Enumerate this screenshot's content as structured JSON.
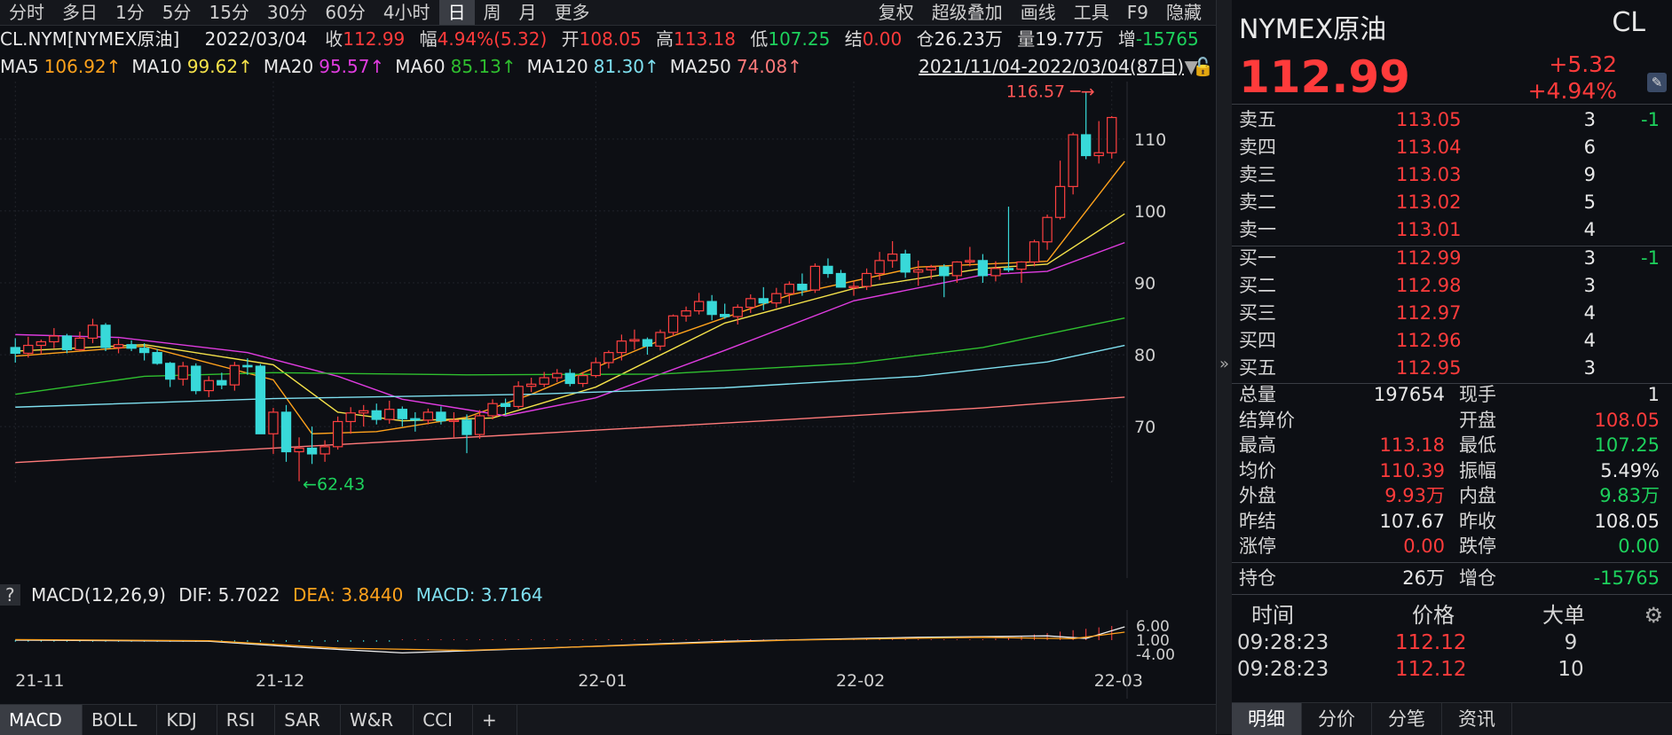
{
  "toolbar": {
    "periods": [
      "分时",
      "多日",
      "1分",
      "5分",
      "15分",
      "30分",
      "60分",
      "4小时",
      "日",
      "周",
      "月",
      "更多"
    ],
    "active_index": 8,
    "right_items": [
      "复权",
      "超级叠加",
      "画线",
      "工具",
      "F9",
      "隐藏"
    ]
  },
  "info": {
    "symbol": "CL.NYM[NYMEX原油]",
    "date": "2022/03/04",
    "close_label": "收",
    "close": "112.99",
    "amp_label": "幅",
    "amp": "4.94%(5.32)",
    "open_label": "开",
    "open": "108.05",
    "high_label": "高",
    "high": "113.18",
    "low_label": "低",
    "low": "107.25",
    "settle_label": "结",
    "settle": "0.00",
    "oi_label": "仓",
    "oi": "26.23万",
    "vol_label": "量",
    "vol": "19.77万",
    "inc_label": "增",
    "inc": "-15765"
  },
  "ma_line": {
    "items": [
      {
        "label": "MA5",
        "value": "106.92↑",
        "color": "#ffa21c"
      },
      {
        "label": "MA10",
        "value": "99.62↑",
        "color": "#f5e24a"
      },
      {
        "label": "MA20",
        "value": "95.57↑",
        "color": "#e03ce0"
      },
      {
        "label": "MA60",
        "value": "85.13↑",
        "color": "#2fbf2f"
      },
      {
        "label": "MA120",
        "value": "81.30↑",
        "color": "#7fe0f0"
      },
      {
        "label": "MA250",
        "value": "74.08↑",
        "color": "#ff7a7a"
      }
    ],
    "range": "2021/11/04-2022/03/04(87日)"
  },
  "chart_data": {
    "type": "candlestick",
    "y_ticks": [
      70,
      80,
      90,
      100,
      110
    ],
    "ylim": [
      62,
      118
    ],
    "x_ticks": [
      "21-11",
      "21-12",
      "22-01",
      "22-02",
      "22-03"
    ],
    "annotations": [
      {
        "text": "116.57",
        "type": "high"
      },
      {
        "text": "62.43",
        "type": "low"
      }
    ],
    "candles": [
      [
        81.0,
        82.3,
        78.9,
        80.2
      ],
      [
        80.2,
        82.5,
        79.6,
        81.3
      ],
      [
        81.3,
        82.1,
        80.1,
        81.8
      ],
      [
        81.8,
        83.7,
        80.9,
        82.6
      ],
      [
        82.6,
        82.9,
        80.2,
        80.7
      ],
      [
        80.7,
        83.2,
        80.5,
        82.3
      ],
      [
        82.3,
        85.0,
        81.6,
        84.1
      ],
      [
        84.1,
        84.4,
        80.5,
        81.0
      ],
      [
        81.0,
        82.2,
        80.2,
        81.4
      ],
      [
        81.4,
        82.0,
        80.5,
        80.9
      ],
      [
        80.9,
        81.6,
        79.2,
        80.3
      ],
      [
        80.3,
        80.8,
        78.6,
        78.8
      ],
      [
        78.8,
        79.0,
        75.5,
        76.6
      ],
      [
        76.6,
        79.0,
        75.7,
        78.4
      ],
      [
        78.4,
        78.8,
        74.5,
        75.0
      ],
      [
        75.0,
        77.0,
        74.1,
        76.4
      ],
      [
        76.4,
        77.5,
        75.2,
        75.8
      ],
      [
        75.8,
        79.0,
        75.0,
        78.5
      ],
      [
        78.5,
        79.5,
        77.2,
        78.4
      ],
      [
        78.4,
        78.7,
        69.2,
        69.0
      ],
      [
        69.0,
        72.6,
        66.2,
        72.0
      ],
      [
        72.0,
        73.0,
        65.1,
        66.5
      ],
      [
        66.5,
        68.5,
        62.4,
        67.0
      ],
      [
        67.0,
        70.0,
        64.8,
        66.2
      ],
      [
        66.2,
        68.1,
        65.1,
        67.2
      ],
      [
        67.2,
        71.4,
        66.8,
        70.7
      ],
      [
        70.7,
        72.7,
        69.0,
        71.9
      ],
      [
        71.9,
        73.0,
        70.0,
        72.2
      ],
      [
        72.2,
        73.2,
        70.3,
        71.0
      ],
      [
        71.0,
        73.6,
        70.4,
        72.4
      ],
      [
        72.4,
        72.8,
        70.0,
        71.1
      ],
      [
        71.1,
        72.0,
        69.3,
        70.9
      ],
      [
        70.9,
        72.5,
        70.3,
        72.0
      ],
      [
        72.0,
        72.8,
        70.3,
        70.8
      ],
      [
        70.8,
        72.0,
        68.5,
        70.9
      ],
      [
        70.9,
        71.7,
        66.3,
        68.9
      ],
      [
        68.9,
        72.3,
        68.3,
        71.5
      ],
      [
        71.5,
        73.8,
        71.0,
        73.2
      ],
      [
        73.2,
        73.9,
        71.6,
        72.8
      ],
      [
        72.8,
        76.3,
        72.5,
        75.6
      ],
      [
        75.6,
        76.8,
        74.8,
        75.9
      ],
      [
        75.9,
        77.6,
        75.5,
        76.8
      ],
      [
        76.8,
        78.0,
        76.2,
        77.4
      ],
      [
        77.4,
        78.0,
        75.6,
        76.0
      ],
      [
        76.0,
        77.6,
        75.5,
        77.1
      ],
      [
        77.1,
        79.6,
        76.8,
        78.9
      ],
      [
        78.9,
        80.6,
        78.1,
        80.3
      ],
      [
        80.3,
        82.8,
        79.2,
        81.9
      ],
      [
        81.9,
        83.5,
        80.7,
        82.1
      ],
      [
        82.1,
        82.4,
        80.0,
        81.2
      ],
      [
        81.2,
        83.5,
        80.6,
        83.1
      ],
      [
        83.1,
        85.6,
        82.6,
        85.4
      ],
      [
        85.4,
        86.7,
        84.6,
        86.1
      ],
      [
        86.1,
        88.6,
        85.6,
        87.4
      ],
      [
        87.4,
        88.3,
        84.8,
        85.6
      ],
      [
        85.6,
        87.1,
        85.0,
        85.3
      ],
      [
        85.3,
        87.0,
        84.2,
        86.6
      ],
      [
        86.6,
        88.4,
        85.8,
        87.8
      ],
      [
        87.8,
        89.4,
        86.2,
        87.2
      ],
      [
        87.2,
        89.3,
        86.5,
        88.5
      ],
      [
        88.5,
        90.2,
        87.1,
        89.8
      ],
      [
        89.8,
        91.3,
        88.2,
        89.0
      ],
      [
        89.0,
        92.7,
        88.6,
        92.3
      ],
      [
        92.3,
        93.4,
        90.7,
        91.3
      ],
      [
        91.3,
        91.8,
        89.4,
        89.4
      ],
      [
        89.4,
        90.2,
        88.2,
        89.5
      ],
      [
        89.5,
        92.0,
        89.0,
        91.3
      ],
      [
        91.3,
        94.3,
        90.4,
        93.1
      ],
      [
        93.1,
        95.8,
        92.1,
        94.0
      ],
      [
        94.0,
        94.6,
        90.7,
        91.5
      ],
      [
        91.5,
        93.1,
        89.6,
        91.8
      ],
      [
        91.8,
        92.5,
        90.5,
        92.2
      ],
      [
        92.2,
        92.6,
        88.0,
        91.0
      ],
      [
        91.0,
        93.0,
        90.0,
        92.9
      ],
      [
        92.9,
        95.0,
        92.3,
        93.1
      ],
      [
        93.1,
        94.0,
        90.0,
        91.0
      ],
      [
        91.0,
        93.0,
        90.2,
        92.0
      ],
      [
        92.0,
        100.6,
        91.5,
        91.9
      ],
      [
        91.9,
        93.0,
        90.0,
        92.9
      ],
      [
        92.9,
        96.0,
        92.3,
        95.7
      ],
      [
        95.7,
        99.5,
        94.6,
        99.1
      ],
      [
        99.1,
        107.0,
        98.8,
        103.4
      ],
      [
        103.4,
        110.9,
        102.3,
        110.6
      ],
      [
        110.6,
        116.6,
        107.2,
        107.7
      ],
      [
        107.7,
        112.5,
        106.6,
        108.1
      ],
      [
        108.1,
        113.2,
        107.3,
        113.0
      ]
    ],
    "ma": {
      "MA5": [
        [
          0,
          79.8
        ],
        [
          10,
          81.2
        ],
        [
          20,
          76.5
        ],
        [
          23,
          69.0
        ],
        [
          28,
          69.3
        ],
        [
          35,
          71.3
        ],
        [
          40,
          74.5
        ],
        [
          50,
          82.0
        ],
        [
          60,
          88.3
        ],
        [
          70,
          92.2
        ],
        [
          80,
          93.0
        ],
        [
          86,
          106.9
        ]
      ],
      "MA10": [
        [
          0,
          80.5
        ],
        [
          10,
          81.4
        ],
        [
          20,
          78.6
        ],
        [
          25,
          72.0
        ],
        [
          30,
          70.8
        ],
        [
          37,
          71.2
        ],
        [
          45,
          75.5
        ],
        [
          55,
          84.4
        ],
        [
          65,
          89.2
        ],
        [
          75,
          92.0
        ],
        [
          80,
          92.6
        ],
        [
          86,
          99.6
        ]
      ],
      "MA20": [
        [
          0,
          82.8
        ],
        [
          8,
          82.4
        ],
        [
          18,
          80.3
        ],
        [
          25,
          77.0
        ],
        [
          30,
          73.8
        ],
        [
          38,
          71.5
        ],
        [
          45,
          74.0
        ],
        [
          55,
          80.6
        ],
        [
          65,
          87.5
        ],
        [
          75,
          91.1
        ],
        [
          80,
          91.6
        ],
        [
          86,
          95.6
        ]
      ],
      "MA60": [
        [
          0,
          74.5
        ],
        [
          10,
          77.0
        ],
        [
          20,
          77.5
        ],
        [
          35,
          77.2
        ],
        [
          50,
          77.3
        ],
        [
          65,
          78.8
        ],
        [
          75,
          81.0
        ],
        [
          86,
          85.1
        ]
      ],
      "MA120": [
        [
          0,
          72.7
        ],
        [
          20,
          73.9
        ],
        [
          40,
          74.5
        ],
        [
          55,
          75.4
        ],
        [
          70,
          77.0
        ],
        [
          80,
          79.0
        ],
        [
          86,
          81.3
        ]
      ],
      "MA250": [
        [
          0,
          65.0
        ],
        [
          20,
          67.0
        ],
        [
          40,
          69.0
        ],
        [
          60,
          71.0
        ],
        [
          75,
          72.6
        ],
        [
          86,
          74.1
        ]
      ]
    },
    "macd": {
      "ticks": [
        "6.00",
        "1.00",
        "-4.00"
      ],
      "dif": [
        [
          0,
          1.0
        ],
        [
          15,
          0.6
        ],
        [
          22,
          -1.5
        ],
        [
          30,
          -3.5
        ],
        [
          40,
          -2.0
        ],
        [
          55,
          0.6
        ],
        [
          70,
          2.0
        ],
        [
          80,
          2.5
        ],
        [
          83,
          1.6
        ],
        [
          86,
          5.7
        ]
      ],
      "dea": [
        [
          0,
          1.2
        ],
        [
          15,
          0.8
        ],
        [
          25,
          -1.8
        ],
        [
          35,
          -2.6
        ],
        [
          45,
          -1.2
        ],
        [
          60,
          1.0
        ],
        [
          75,
          2.0
        ],
        [
          82,
          1.5
        ],
        [
          86,
          3.8
        ]
      ]
    }
  },
  "macd_header": {
    "q": "?",
    "name": "MACD(12,26,9)",
    "dif_label": "DIF: 5.7022",
    "dea_label": "DEA: 3.8440",
    "macd_label": "MACD: 3.7164"
  },
  "bottom_tabs": [
    "MACD",
    "BOLL",
    "KDJ",
    "RSI",
    "SAR",
    "W&R",
    "CCI",
    "+"
  ],
  "quote": {
    "name": "NYMEX原油",
    "code": "CL",
    "price": "112.99",
    "change": "+5.32",
    "pct": "+4.94%",
    "asks": [
      {
        "label": "卖五",
        "price": "113.05",
        "vol": "3",
        "delta": "-1"
      },
      {
        "label": "卖四",
        "price": "113.04",
        "vol": "6",
        "delta": ""
      },
      {
        "label": "卖三",
        "price": "113.03",
        "vol": "9",
        "delta": ""
      },
      {
        "label": "卖二",
        "price": "113.02",
        "vol": "5",
        "delta": ""
      },
      {
        "label": "卖一",
        "price": "113.01",
        "vol": "4",
        "delta": ""
      }
    ],
    "bids": [
      {
        "label": "买一",
        "price": "112.99",
        "vol": "3",
        "delta": "-1"
      },
      {
        "label": "买二",
        "price": "112.98",
        "vol": "3",
        "delta": ""
      },
      {
        "label": "买三",
        "price": "112.97",
        "vol": "4",
        "delta": ""
      },
      {
        "label": "买四",
        "price": "112.96",
        "vol": "4",
        "delta": ""
      },
      {
        "label": "买五",
        "price": "112.95",
        "vol": "3",
        "delta": ""
      }
    ],
    "stats": [
      {
        "l1": "总量",
        "v1": "197654",
        "c1": "white",
        "l2": "现手",
        "v2": "1",
        "c2": "white"
      },
      {
        "l1": "结算价",
        "v1": "",
        "c1": "white",
        "l2": "开盘",
        "v2": "108.05",
        "c2": "red"
      },
      {
        "l1": "最高",
        "v1": "113.18",
        "c1": "red",
        "l2": "最低",
        "v2": "107.25",
        "c2": "green"
      },
      {
        "l1": "均价",
        "v1": "110.39",
        "c1": "red",
        "l2": "振幅",
        "v2": "5.49%",
        "c2": "white"
      },
      {
        "l1": "外盘",
        "v1": "9.93万",
        "c1": "red",
        "l2": "内盘",
        "v2": "9.83万",
        "c2": "green"
      },
      {
        "l1": "昨结",
        "v1": "107.67",
        "c1": "white",
        "l2": "昨收",
        "v2": "108.05",
        "c2": "white"
      },
      {
        "l1": "涨停",
        "v1": "0.00",
        "c1": "red",
        "l2": "跌停",
        "v2": "0.00",
        "c2": "green"
      }
    ],
    "holding": {
      "l1": "持仓",
      "v1": "26万",
      "l2": "增仓",
      "v2": "-15765"
    },
    "trades_header": {
      "time": "时间",
      "price": "价格",
      "big": "大单"
    },
    "trades": [
      {
        "time": "09:28:23",
        "price": "112.12",
        "big": "9"
      },
      {
        "time": "09:28:23",
        "price": "112.12",
        "big": "10"
      }
    ],
    "tabs": [
      "明细",
      "分价",
      "分笔",
      "资讯"
    ]
  }
}
